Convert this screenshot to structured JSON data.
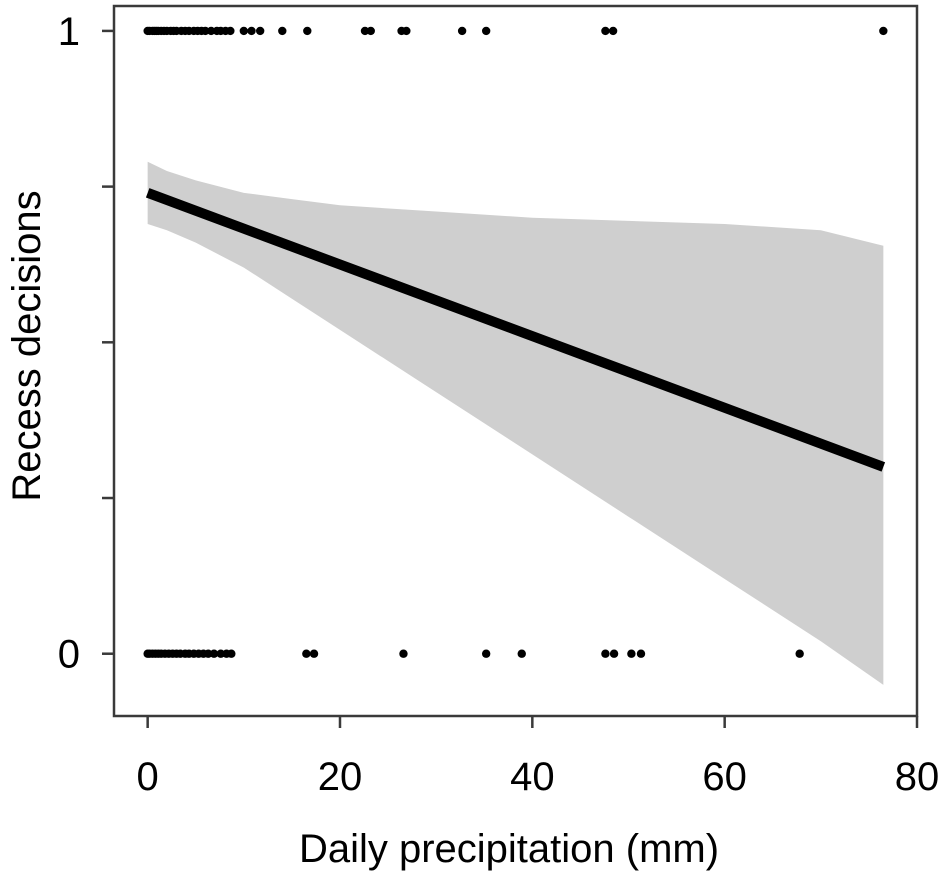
{
  "chart_data": {
    "type": "scatter",
    "title": "",
    "xlabel": "Daily precipitation (mm)",
    "ylabel": "Recess decisions",
    "xlim": [
      -3.5,
      80
    ],
    "ylim": [
      -0.1,
      1.04
    ],
    "x_ticks": [
      0,
      20,
      40,
      60,
      80
    ],
    "x_tick_labels": [
      "0",
      "20",
      "40",
      "60",
      "80"
    ],
    "y_ticks": [
      0,
      0.25,
      0.5,
      0.75,
      1
    ],
    "y_tick_labels": [
      "0",
      "",
      "",
      "",
      "1"
    ],
    "grid": false,
    "points_y1": [
      0,
      0.2,
      0.5,
      0.7,
      0.9,
      1.1,
      1.4,
      1.7,
      2.0,
      2.4,
      2.7,
      3.0,
      3.5,
      3.9,
      4.3,
      4.8,
      5.2,
      5.6,
      6.0,
      6.6,
      7.2,
      7.6,
      8.1,
      8.6,
      10.0,
      10.8,
      11.7,
      14.0,
      16.6,
      22.6,
      23.2,
      26.4,
      26.9,
      32.7,
      35.2,
      47.6,
      48.4,
      76.5
    ],
    "points_y0": [
      0,
      0.2,
      0.5,
      0.8,
      1.1,
      1.4,
      1.8,
      2.2,
      2.6,
      3.0,
      3.4,
      3.9,
      4.3,
      4.8,
      5.3,
      5.8,
      6.3,
      6.9,
      7.6,
      8.2,
      8.7,
      16.5,
      17.3,
      26.6,
      35.2,
      38.9,
      47.6,
      48.5,
      50.3,
      51.3,
      67.8
    ],
    "fit_line": {
      "x": [
        0,
        76.5
      ],
      "y": [
        0.74,
        0.3
      ]
    },
    "confidence_band": {
      "x": [
        0,
        2,
        5,
        10,
        15,
        20,
        30,
        40,
        50,
        60,
        70,
        76.5
      ],
      "lower": [
        0.69,
        0.68,
        0.66,
        0.62,
        0.57,
        0.52,
        0.42,
        0.32,
        0.22,
        0.12,
        0.02,
        -0.05
      ],
      "upper": [
        0.79,
        0.775,
        0.76,
        0.74,
        0.73,
        0.72,
        0.71,
        0.7,
        0.695,
        0.69,
        0.68,
        0.655
      ]
    },
    "colors": {
      "points": "#000000",
      "line": "#000000",
      "band": "#cfcfcf"
    }
  }
}
